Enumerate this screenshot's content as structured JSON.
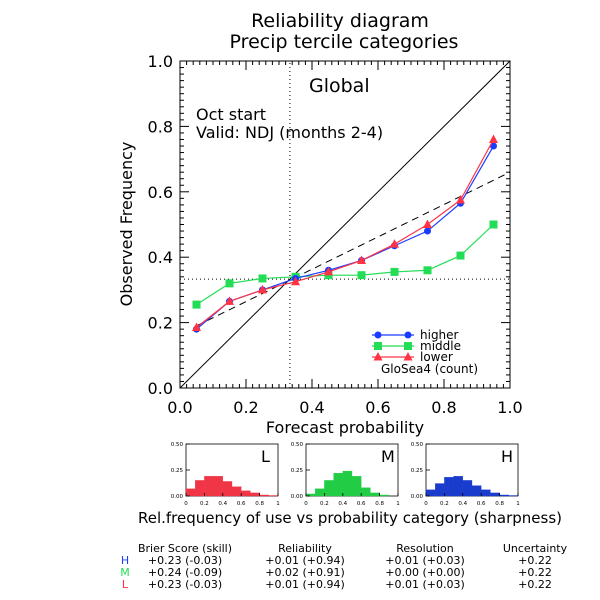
{
  "chart_data": [
    {
      "type": "line",
      "title": "Reliability diagram",
      "subtitle": "Precip tercile categories",
      "region": "Global",
      "annotation_lines": [
        "Oct start",
        "Valid: NDJ (months 2-4)"
      ],
      "xlabel": "Forecast probability",
      "ylabel": "Observed Frequency",
      "xlim": [
        0,
        1
      ],
      "ylim": [
        0,
        1
      ],
      "xticks": [
        "0.0",
        "0.2",
        "0.4",
        "0.6",
        "0.8",
        "1.0"
      ],
      "yticks": [
        "0.0",
        "0.2",
        "0.4",
        "0.6",
        "0.8",
        "1.0"
      ],
      "climatology": 0.333,
      "grid": false,
      "legend_position": "bottom-right",
      "legend_note": "GloSea4 (count)",
      "x": [
        0.05,
        0.15,
        0.25,
        0.35,
        0.45,
        0.55,
        0.65,
        0.75,
        0.85,
        0.95
      ],
      "series": [
        {
          "name": "higher",
          "color": "#1a3cff",
          "marker": "circle",
          "values": [
            0.18,
            0.265,
            0.3,
            0.335,
            0.36,
            0.39,
            0.435,
            0.48,
            0.565,
            0.74
          ]
        },
        {
          "name": "middle",
          "color": "#22dd55",
          "marker": "square",
          "values": [
            0.255,
            0.32,
            0.335,
            0.34,
            0.345,
            0.345,
            0.355,
            0.36,
            0.405,
            0.5
          ]
        },
        {
          "name": "lower",
          "color": "#ff3344",
          "marker": "triangle",
          "values": [
            0.185,
            0.265,
            0.3,
            0.325,
            0.355,
            0.39,
            0.44,
            0.5,
            0.575,
            0.76
          ]
        }
      ],
      "diagonal_line": [
        [
          0,
          0
        ],
        [
          1,
          1
        ]
      ],
      "dashed_fit_line": [
        [
          0.05,
          0.19
        ],
        [
          1,
          0.66
        ]
      ]
    },
    {
      "type": "bar",
      "label": "L",
      "color": "#f03546",
      "categories": [
        "0.05",
        "0.15",
        "0.25",
        "0.35",
        "0.45",
        "0.55",
        "0.65",
        "0.75",
        "0.85",
        "0.95"
      ],
      "values": [
        0.07,
        0.15,
        0.19,
        0.19,
        0.14,
        0.09,
        0.05,
        0.03,
        0.01,
        0.005
      ],
      "ylim": [
        0,
        0.5
      ],
      "yticks": [
        "0.00",
        "0.25",
        "0.50"
      ],
      "xticks": [
        "0",
        "0.2",
        "0.4",
        "0.6",
        "0.8",
        "1"
      ]
    },
    {
      "type": "bar",
      "label": "M",
      "color": "#22cc44",
      "categories": [
        "0.05",
        "0.15",
        "0.25",
        "0.35",
        "0.45",
        "0.55",
        "0.65",
        "0.75",
        "0.85",
        "0.95"
      ],
      "values": [
        0.02,
        0.07,
        0.15,
        0.22,
        0.24,
        0.19,
        0.08,
        0.03,
        0.01,
        0.0
      ],
      "ylim": [
        0,
        0.5
      ],
      "yticks": [
        "0.00",
        "0.25",
        "0.50"
      ],
      "xticks": [
        "0",
        "0.2",
        "0.4",
        "0.6",
        "0.8",
        "1"
      ]
    },
    {
      "type": "bar",
      "label": "H",
      "color": "#1a3ccc",
      "categories": [
        "0.05",
        "0.15",
        "0.25",
        "0.35",
        "0.45",
        "0.55",
        "0.65",
        "0.75",
        "0.85",
        "0.95"
      ],
      "values": [
        0.06,
        0.12,
        0.18,
        0.19,
        0.15,
        0.1,
        0.06,
        0.03,
        0.01,
        0.005
      ],
      "ylim": [
        0,
        0.5
      ],
      "yticks": [
        "0.00",
        "0.25",
        "0.50"
      ],
      "xticks": [
        "0",
        "0.2",
        "0.4",
        "0.6",
        "0.8",
        "1"
      ]
    }
  ],
  "sharpness_caption": "Rel.frequency of use vs probability category (sharpness)",
  "scores": {
    "headers": [
      "Brier Score (skill)",
      "Reliability",
      "Resolution",
      "Uncertainty"
    ],
    "rows": [
      {
        "label": "H",
        "color": "#1a3cff",
        "cells": [
          "+0.23  (-0.03)",
          "+0.01  (+0.94)",
          "+0.01  (+0.03)",
          "+0.22"
        ]
      },
      {
        "label": "M",
        "color": "#22dd55",
        "cells": [
          "+0.24  (-0.09)",
          "+0.02  (+0.91)",
          "+0.00  (+0.00)",
          "+0.22"
        ]
      },
      {
        "label": "L",
        "color": "#ff3344",
        "cells": [
          "+0.23  (-0.03)",
          "+0.01  (+0.94)",
          "+0.01  (+0.03)",
          "+0.22"
        ]
      }
    ]
  }
}
